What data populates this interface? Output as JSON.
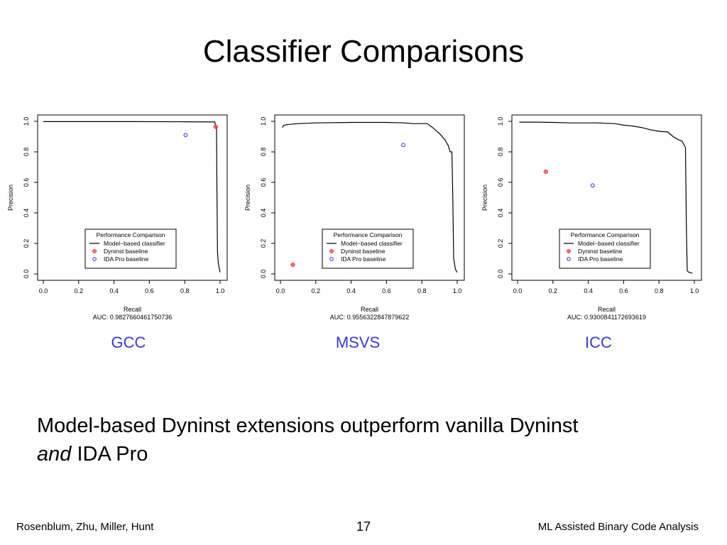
{
  "slide": {
    "title": "Classifier Comparisons",
    "statement_main": "Model-based Dyninst extensions outperform vanilla Dyninst",
    "statement_em": "and",
    "statement_tail": " IDA Pro"
  },
  "footer": {
    "authors": "Rosenblum, Zhu, Miller, Hunt",
    "page_number": "17",
    "talk_title": "ML Assisted Binary Code Analysis"
  },
  "colors": {
    "caption": "#3a3ad8",
    "line": "#000000",
    "dyninst": "#ff2a2a",
    "ida": "#2a2aff"
  },
  "chart_data": [
    {
      "type": "line",
      "caption": "GCC",
      "xlabel": "Recall",
      "ylabel": "Precision",
      "auc_label": "AUC: 0.9827660461750736",
      "xlim": [
        0,
        1
      ],
      "ylim": [
        0,
        1
      ],
      "xticks": [
        "0.0",
        "0.2",
        "0.4",
        "0.6",
        "0.8",
        "1.0"
      ],
      "yticks": [
        "0.0",
        "0.2",
        "0.4",
        "0.6",
        "0.8",
        "1.0"
      ],
      "legend": {
        "title": "Performance Comparison",
        "placement": "bottom-right",
        "entries": [
          "Model−based classifier",
          "Dyninst baseline",
          "IDA Pro baseline"
        ]
      },
      "series": [
        {
          "name": "Model−based classifier",
          "kind": "line",
          "x": [
            0.0,
            0.2,
            0.5,
            0.8,
            0.97,
            0.98,
            0.982,
            0.985,
            0.99,
            1.0
          ],
          "y": [
            0.998,
            0.998,
            0.998,
            0.997,
            0.996,
            0.95,
            0.6,
            0.15,
            0.07,
            0.01
          ]
        },
        {
          "name": "Dyninst baseline",
          "kind": "point",
          "x": [
            0.975
          ],
          "y": [
            0.965
          ]
        },
        {
          "name": "IDA Pro baseline",
          "kind": "point",
          "x": [
            0.805
          ],
          "y": [
            0.91
          ]
        }
      ]
    },
    {
      "type": "line",
      "caption": "MSVS",
      "xlabel": "Recall",
      "ylabel": "Precision",
      "auc_label": "AUC: 0.9556322847879622",
      "xlim": [
        0,
        1
      ],
      "ylim": [
        0,
        1
      ],
      "xticks": [
        "0.0",
        "0.2",
        "0.4",
        "0.6",
        "0.8",
        "1.0"
      ],
      "yticks": [
        "0.0",
        "0.2",
        "0.4",
        "0.6",
        "0.8",
        "1.0"
      ],
      "legend": {
        "title": "Performance Comparison",
        "placement": "bottom-right",
        "entries": [
          "Model−based classifier",
          "Dyninst baseline",
          "IDA Pro baseline"
        ]
      },
      "series": [
        {
          "name": "Model−based classifier",
          "kind": "line",
          "x": [
            0.01,
            0.02,
            0.05,
            0.1,
            0.2,
            0.4,
            0.6,
            0.7,
            0.75,
            0.83,
            0.86,
            0.9,
            0.93,
            0.95,
            0.96,
            0.97,
            0.975,
            0.98,
            0.99,
            1.0
          ],
          "y": [
            0.96,
            0.975,
            0.98,
            0.985,
            0.99,
            0.993,
            0.993,
            0.99,
            0.985,
            0.985,
            0.96,
            0.92,
            0.88,
            0.84,
            0.8,
            0.8,
            0.5,
            0.1,
            0.03,
            0.01
          ]
        },
        {
          "name": "Dyninst baseline",
          "kind": "point",
          "x": [
            0.07
          ],
          "y": [
            0.06
          ]
        },
        {
          "name": "IDA Pro baseline",
          "kind": "point",
          "x": [
            0.695
          ],
          "y": [
            0.845
          ]
        }
      ]
    },
    {
      "type": "line",
      "caption": "ICC",
      "xlabel": "Recall",
      "ylabel": "Precision",
      "auc_label": "AUC: 0.9300841172693619",
      "xlim": [
        0,
        1
      ],
      "ylim": [
        0,
        1
      ],
      "xticks": [
        "0.0",
        "0.2",
        "0.4",
        "0.6",
        "0.8",
        "1.0"
      ],
      "yticks": [
        "0.0",
        "0.2",
        "0.4",
        "0.6",
        "0.8",
        "1.0"
      ],
      "legend": {
        "title": "Performance Comparison",
        "placement": "bottom-right",
        "entries": [
          "Model−based classifier",
          "Dyninst baseline",
          "IDA Pro baseline"
        ]
      },
      "series": [
        {
          "name": "Model−based classifier",
          "kind": "line",
          "x": [
            0.01,
            0.1,
            0.2,
            0.3,
            0.45,
            0.55,
            0.6,
            0.65,
            0.7,
            0.75,
            0.8,
            0.85,
            0.88,
            0.91,
            0.93,
            0.94,
            0.95,
            0.955,
            0.96,
            0.97,
            0.99
          ],
          "y": [
            0.995,
            0.995,
            0.993,
            0.99,
            0.99,
            0.985,
            0.975,
            0.97,
            0.96,
            0.945,
            0.935,
            0.93,
            0.9,
            0.88,
            0.87,
            0.85,
            0.83,
            0.3,
            0.02,
            0.01,
            0.005
          ]
        },
        {
          "name": "Dyninst baseline",
          "kind": "point",
          "x": [
            0.16
          ],
          "y": [
            0.67
          ]
        },
        {
          "name": "IDA Pro baseline",
          "kind": "point",
          "x": [
            0.425
          ],
          "y": [
            0.58
          ]
        }
      ]
    }
  ]
}
